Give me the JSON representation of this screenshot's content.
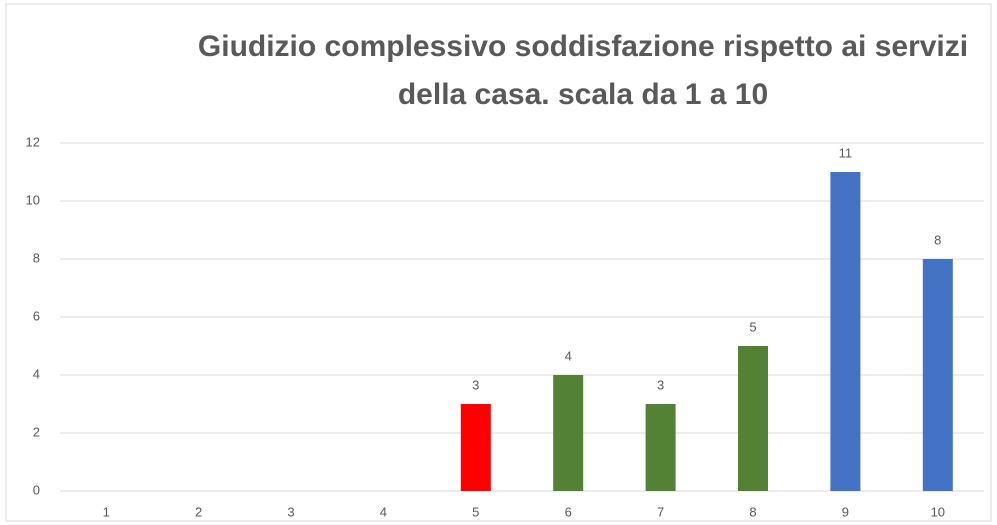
{
  "chart_data": {
    "type": "bar",
    "title": [
      "Giudizio complessivo soddisfazione rispetto ai servizi",
      "della casa. scala da 1 a 10"
    ],
    "categories": [
      "1",
      "2",
      "3",
      "4",
      "5",
      "6",
      "7",
      "8",
      "9",
      "10"
    ],
    "values": [
      null,
      null,
      null,
      null,
      3,
      4,
      3,
      5,
      11,
      8
    ],
    "colors": [
      null,
      null,
      null,
      null,
      "#ff0000",
      "#548235",
      "#548235",
      "#548235",
      "#4472c4",
      "#4472c4"
    ],
    "ylim": [
      0,
      12
    ],
    "yticks": [
      0,
      2,
      4,
      6,
      8,
      10,
      12
    ],
    "grid": true
  }
}
